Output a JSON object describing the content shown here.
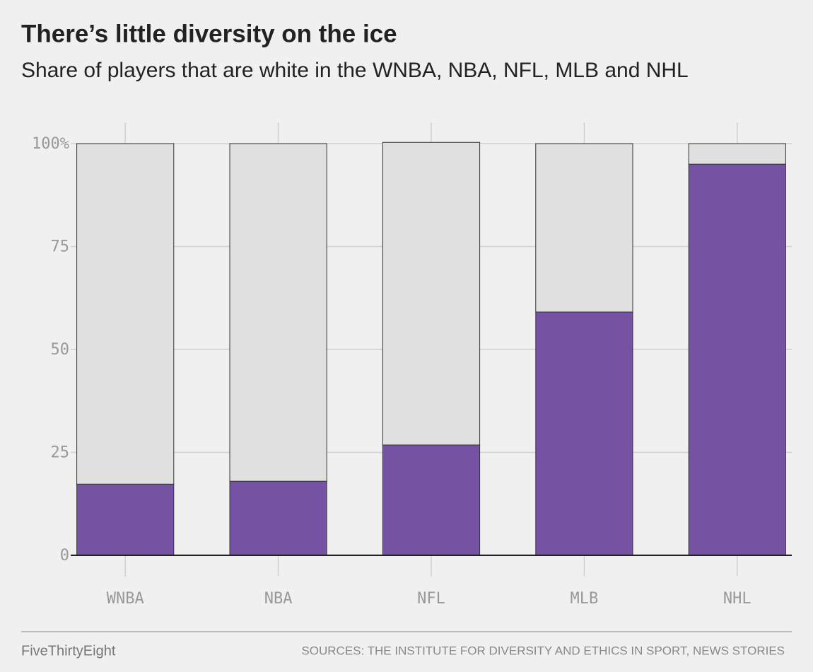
{
  "chart_data": {
    "type": "stacked_bar",
    "title": "There’s little diversity on the ice",
    "subtitle": "Share of players that are white in the WNBA, NBA, NFL, MLB and NHL",
    "categories": [
      "WNBA",
      "NBA",
      "NFL",
      "MLB",
      "NHL"
    ],
    "series": [
      {
        "color": "#7652a5",
        "values": [
          17.3,
          18.0,
          26.8,
          59.1,
          95.0
        ]
      },
      {
        "color": "#e0e0e0",
        "values": [
          82.7,
          82.0,
          73.5,
          40.9,
          5.0
        ]
      }
    ],
    "ylim": [
      0,
      100
    ],
    "yticks": [
      0,
      25,
      50,
      75,
      {
        "value": 100,
        "label": "100%"
      }
    ],
    "grid": true,
    "credit": "FiveThirtyEight",
    "source": "SOURCES: THE INSTITUTE FOR DIVERSITY AND ETHICS IN SPORT, NEWS STORIES"
  }
}
